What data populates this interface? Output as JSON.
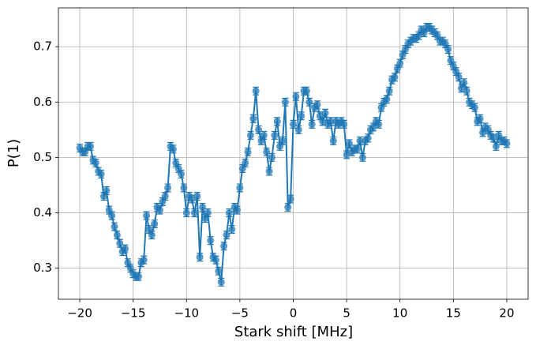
{
  "chart_data": {
    "type": "errorbar-line",
    "xlabel": "Stark shift [MHz]",
    "ylabel": "P(1)",
    "xlim": [
      -22,
      22
    ],
    "ylim": [
      0.244,
      0.77
    ],
    "xticks": [
      {
        "value": -20,
        "label": "−20"
      },
      {
        "value": -15,
        "label": "−15"
      },
      {
        "value": -10,
        "label": "−10"
      },
      {
        "value": -5,
        "label": "−5"
      },
      0,
      5,
      10,
      15,
      20
    ],
    "yticks": [
      0.3,
      0.4,
      0.5,
      0.6,
      0.7
    ],
    "grid": true,
    "x": [
      -20,
      -19.75,
      -19.5,
      -19.25,
      -19,
      -18.75,
      -18.5,
      -18.25,
      -18,
      -17.75,
      -17.5,
      -17.25,
      -17,
      -16.75,
      -16.5,
      -16.25,
      -16,
      -15.75,
      -15.5,
      -15.25,
      -15,
      -14.75,
      -14.5,
      -14.25,
      -14,
      -13.75,
      -13.5,
      -13.25,
      -13,
      -12.75,
      -12.5,
      -12.25,
      -12,
      -11.75,
      -11.5,
      -11.25,
      -11,
      -10.75,
      -10.5,
      -10.25,
      -10,
      -9.75,
      -9.5,
      -9.25,
      -9,
      -8.75,
      -8.5,
      -8.25,
      -8,
      -7.75,
      -7.5,
      -7.25,
      -7,
      -6.75,
      -6.5,
      -6.25,
      -6,
      -5.75,
      -5.5,
      -5.25,
      -5,
      -4.75,
      -4.5,
      -4.25,
      -4,
      -3.75,
      -3.5,
      -3.25,
      -3,
      -2.75,
      -2.5,
      -2.25,
      -2,
      -1.75,
      -1.5,
      -1.25,
      -1,
      -0.75,
      -0.5,
      -0.25,
      0,
      0.25,
      0.5,
      0.75,
      1,
      1.25,
      1.5,
      1.75,
      2,
      2.25,
      2.5,
      2.75,
      3,
      3.25,
      3.5,
      3.75,
      4,
      4.25,
      4.5,
      4.75,
      5,
      5.25,
      5.5,
      5.75,
      6,
      6.25,
      6.5,
      6.75,
      7,
      7.25,
      7.5,
      7.75,
      8,
      8.25,
      8.5,
      8.75,
      9,
      9.25,
      9.5,
      9.75,
      10,
      10.25,
      10.5,
      10.75,
      11,
      11.25,
      11.5,
      11.75,
      12,
      12.25,
      12.5,
      12.75,
      13,
      13.25,
      13.5,
      13.75,
      14,
      14.25,
      14.5,
      14.75,
      15,
      15.25,
      15.5,
      15.75,
      16,
      16.25,
      16.5,
      16.75,
      17,
      17.25,
      17.5,
      17.75,
      18,
      18.25,
      18.5,
      18.75,
      19,
      19.25,
      19.5,
      19.75,
      20
    ],
    "series": [
      {
        "color": "#1f77b4",
        "yerr": 0.007,
        "values": [
          0.517,
          0.51,
          0.51,
          0.52,
          0.52,
          0.495,
          0.49,
          0.475,
          0.47,
          0.43,
          0.44,
          0.405,
          0.395,
          0.375,
          0.36,
          0.345,
          0.33,
          0.335,
          0.31,
          0.3,
          0.29,
          0.285,
          0.285,
          0.31,
          0.315,
          0.395,
          0.37,
          0.36,
          0.38,
          0.41,
          0.405,
          0.42,
          0.43,
          0.445,
          0.52,
          0.515,
          0.49,
          0.48,
          0.47,
          0.445,
          0.4,
          0.43,
          0.425,
          0.4,
          0.43,
          0.32,
          0.41,
          0.39,
          0.4,
          0.35,
          0.32,
          0.315,
          0.295,
          0.275,
          0.34,
          0.36,
          0.4,
          0.37,
          0.41,
          0.405,
          0.445,
          0.48,
          0.49,
          0.51,
          0.54,
          0.57,
          0.62,
          0.55,
          0.53,
          0.54,
          0.51,
          0.475,
          0.5,
          0.54,
          0.565,
          0.52,
          0.53,
          0.6,
          0.41,
          0.425,
          0.56,
          0.61,
          0.55,
          0.575,
          0.62,
          0.62,
          0.6,
          0.56,
          0.59,
          0.595,
          0.575,
          0.565,
          0.58,
          0.56,
          0.565,
          0.53,
          0.565,
          0.56,
          0.565,
          0.56,
          0.505,
          0.525,
          0.51,
          0.515,
          0.515,
          0.53,
          0.5,
          0.53,
          0.535,
          0.55,
          0.555,
          0.565,
          0.56,
          0.59,
          0.6,
          0.605,
          0.62,
          0.64,
          0.645,
          0.66,
          0.67,
          0.685,
          0.695,
          0.705,
          0.71,
          0.715,
          0.715,
          0.72,
          0.73,
          0.725,
          0.735,
          0.735,
          0.73,
          0.725,
          0.72,
          0.71,
          0.71,
          0.705,
          0.695,
          0.675,
          0.665,
          0.655,
          0.645,
          0.625,
          0.635,
          0.62,
          0.6,
          0.595,
          0.59,
          0.565,
          0.57,
          0.545,
          0.555,
          0.55,
          0.54,
          0.535,
          0.52,
          0.54,
          0.53,
          0.53,
          0.525
        ]
      }
    ]
  }
}
